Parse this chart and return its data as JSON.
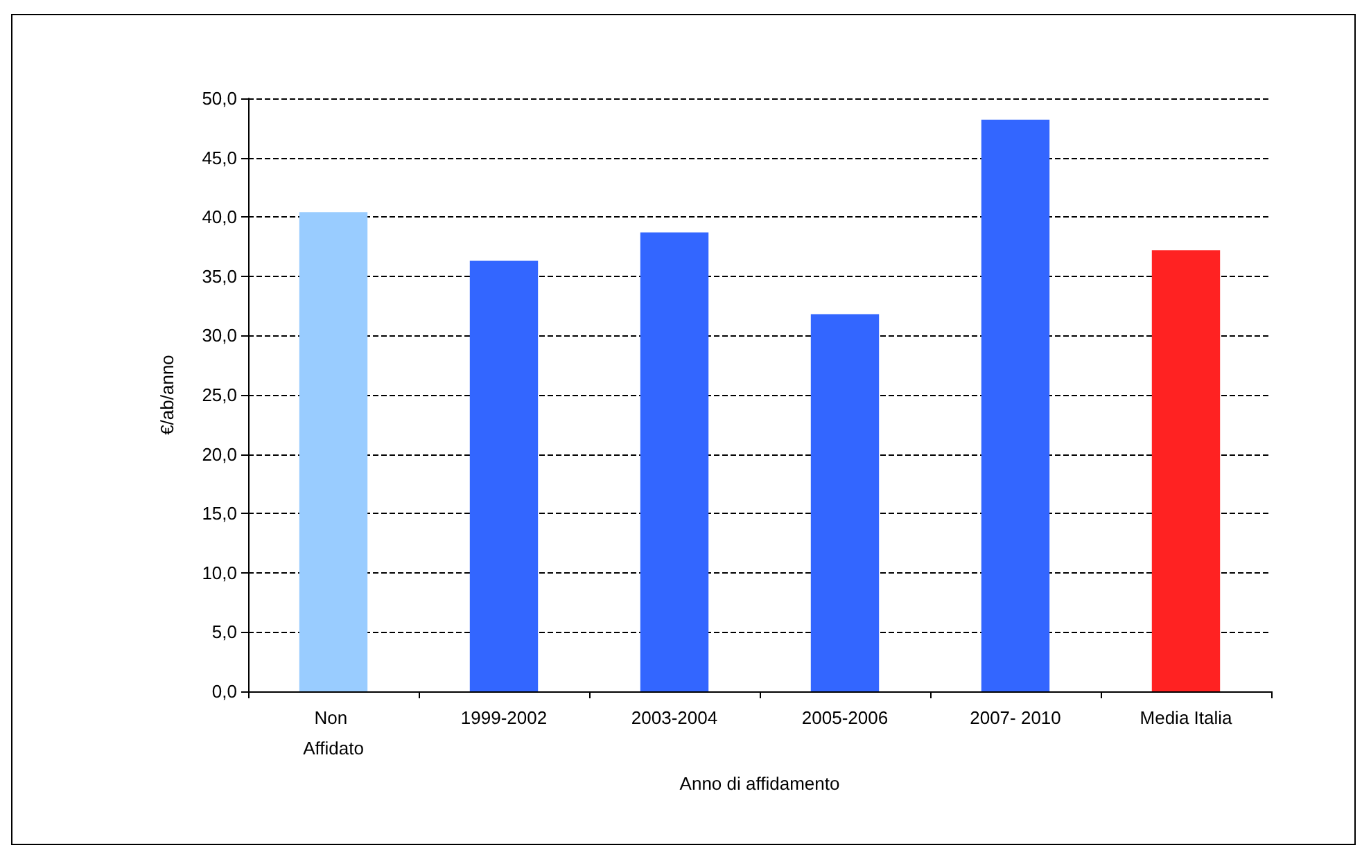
{
  "chart_data": {
    "type": "bar",
    "xlabel": "Anno di affidamento",
    "ylabel": "€/ab/anno",
    "categories": [
      "Non Affidato",
      "1999-2002",
      "2003-2004",
      "2005-2006",
      "2007- 2010",
      "Media Italia"
    ],
    "values": [
      40.4,
      36.3,
      38.7,
      31.8,
      48.2,
      37.2
    ],
    "colors": [
      "#99ccff",
      "#3366ff",
      "#3366ff",
      "#3366ff",
      "#3366ff",
      "#ff2222"
    ],
    "ylim": [
      0,
      50
    ],
    "yticks": [
      {
        "value": 0,
        "label": "0,0"
      },
      {
        "value": 5,
        "label": "5,0"
      },
      {
        "value": 10,
        "label": "10,0"
      },
      {
        "value": 15,
        "label": "15,0"
      },
      {
        "value": 20,
        "label": "20,0"
      },
      {
        "value": 25,
        "label": "25,0"
      },
      {
        "value": 30,
        "label": "30,0"
      },
      {
        "value": 35,
        "label": "35,0"
      },
      {
        "value": 40,
        "label": "40,0"
      },
      {
        "value": 45,
        "label": "45,0"
      },
      {
        "value": 50,
        "label": "50,0"
      }
    ],
    "grid": "y"
  }
}
